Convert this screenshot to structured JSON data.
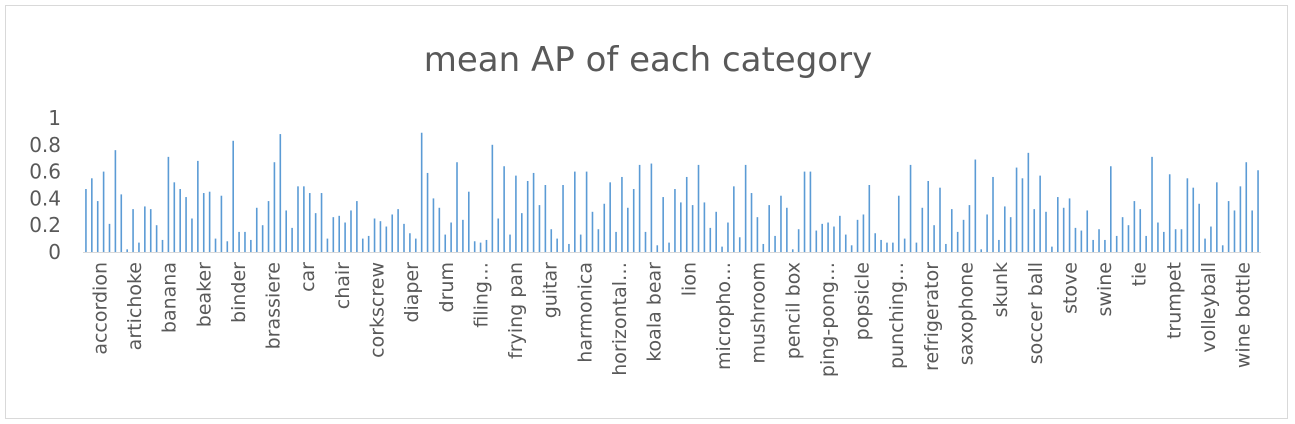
{
  "chart_data": {
    "type": "bar",
    "title": "mean AP of each category",
    "xlabel": "",
    "ylabel": "",
    "ylim": [
      0,
      1
    ],
    "yticks": [
      "0",
      "0.2",
      "0.4",
      "0.6",
      "0.8",
      "1"
    ],
    "grid": false,
    "legend": "none",
    "bar_color": "#5b9bd5",
    "category_labels": [
      "accordion",
      "artichoke",
      "banana",
      "beaker",
      "binder",
      "brassiere",
      "car",
      "chair",
      "corkscrew",
      "diaper",
      "drum",
      "filing…",
      "frying pan",
      "guitar",
      "harmonica",
      "horizontal…",
      "koala bear",
      "lion",
      "micropho…",
      "mushroom",
      "pencil box",
      "ping-pong…",
      "popsicle",
      "punching…",
      "refrigerator",
      "saxophone",
      "skunk",
      "soccer ball",
      "stove",
      "swine",
      "tie",
      "trumpet",
      "volleyball",
      "wine bottle"
    ],
    "values": [
      0.47,
      0.55,
      0.38,
      0.6,
      0.21,
      0.76,
      0.43,
      0.02,
      0.32,
      0.07,
      0.34,
      0.32,
      0.2,
      0.09,
      0.71,
      0.52,
      0.47,
      0.41,
      0.25,
      0.68,
      0.44,
      0.45,
      0.1,
      0.42,
      0.08,
      0.83,
      0.15,
      0.15,
      0.09,
      0.33,
      0.2,
      0.38,
      0.67,
      0.88,
      0.31,
      0.18,
      0.49,
      0.49,
      0.44,
      0.29,
      0.44,
      0.1,
      0.26,
      0.27,
      0.22,
      0.31,
      0.38,
      0.1,
      0.12,
      0.25,
      0.23,
      0.19,
      0.28,
      0.32,
      0.21,
      0.14,
      0.1,
      0.89,
      0.59,
      0.4,
      0.33,
      0.13,
      0.22,
      0.67,
      0.24,
      0.45,
      0.08,
      0.07,
      0.09,
      0.8,
      0.25,
      0.64,
      0.13,
      0.57,
      0.29,
      0.53,
      0.59,
      0.35,
      0.5,
      0.17,
      0.1,
      0.5,
      0.06,
      0.6,
      0.13,
      0.6,
      0.3,
      0.17,
      0.36,
      0.52,
      0.15,
      0.56,
      0.33,
      0.47,
      0.65,
      0.15,
      0.66,
      0.05,
      0.41,
      0.07,
      0.47,
      0.37,
      0.56,
      0.35,
      0.65,
      0.37,
      0.18,
      0.3,
      0.04,
      0.22,
      0.49,
      0.11,
      0.65,
      0.44,
      0.26,
      0.06,
      0.35,
      0.12,
      0.42,
      0.33,
      0.02,
      0.17,
      0.6,
      0.6,
      0.16,
      0.21,
      0.22,
      0.19,
      0.27,
      0.13,
      0.05,
      0.24,
      0.28,
      0.5,
      0.14,
      0.09,
      0.07,
      0.07,
      0.42,
      0.1,
      0.65,
      0.07,
      0.33,
      0.53,
      0.2,
      0.48,
      0.06,
      0.32,
      0.15,
      0.24,
      0.35,
      0.69,
      0.02,
      0.28,
      0.56,
      0.09,
      0.34,
      0.26,
      0.63,
      0.55,
      0.74,
      0.32,
      0.57,
      0.3,
      0.04,
      0.41,
      0.33,
      0.4,
      0.18,
      0.16,
      0.31,
      0.09,
      0.17,
      0.09,
      0.64,
      0.12,
      0.26,
      0.2,
      0.38,
      0.32,
      0.12,
      0.71,
      0.22,
      0.15,
      0.58,
      0.17,
      0.17,
      0.55,
      0.48,
      0.36,
      0.1,
      0.19,
      0.52,
      0.05,
      0.38,
      0.31,
      0.49,
      0.67,
      0.31,
      0.61
    ]
  }
}
